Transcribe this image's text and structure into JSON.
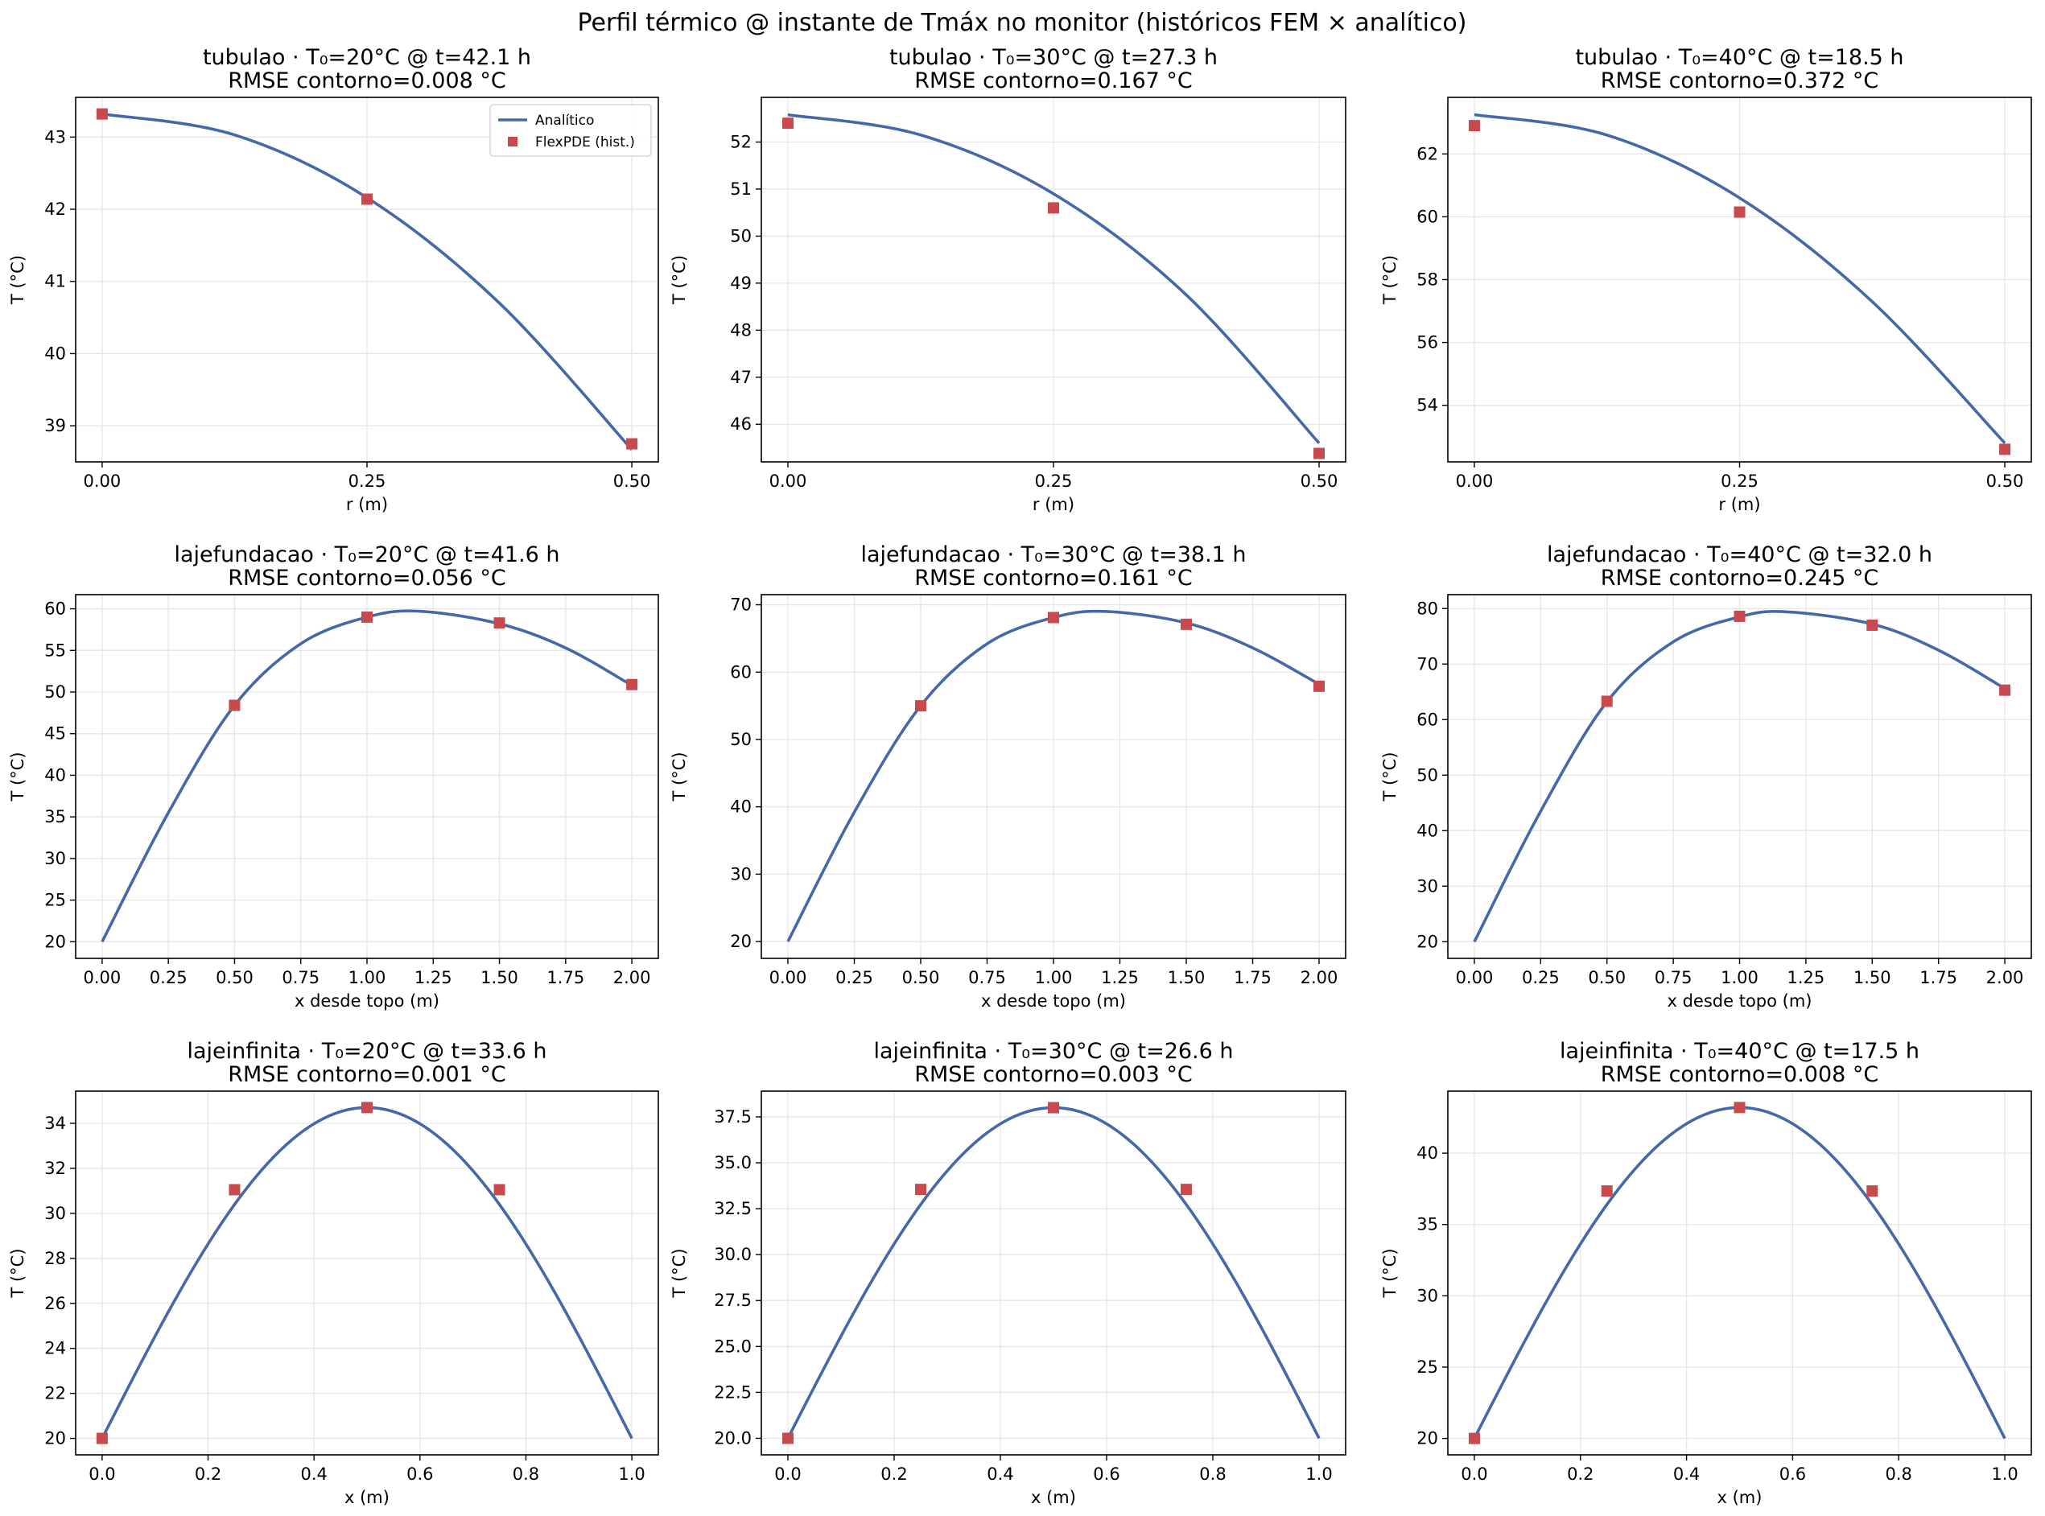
{
  "figure": {
    "suptitle": "Perfil térmico @ instante de Tmáx no monitor (históricos FEM × analítico)",
    "colors": {
      "analytic": "#4569a8",
      "fem": "#c84a4e",
      "grid": "#e6e6e6"
    }
  },
  "chart_data": [
    {
      "type": "line",
      "title": "tubulao · T₀=20°C @ t=42.1 h",
      "subtitle": "RMSE contorno=0.008 °C",
      "xlabel": "r (m)",
      "ylabel": "T (°C)",
      "xlim": [
        -0.025,
        0.525
      ],
      "ylim": [
        38.5,
        43.55
      ],
      "xticks": [
        0,
        0.25,
        0.5
      ],
      "xtick_labels": [
        "0.00",
        "0.25",
        "0.50"
      ],
      "yticks": [
        39,
        40,
        41,
        42,
        43
      ],
      "ytick_labels": [
        "39",
        "40",
        "41",
        "42",
        "43"
      ],
      "legend": {
        "position": "top-right",
        "entries": [
          "Analítico",
          "FlexPDE (hist.)"
        ]
      },
      "series": [
        {
          "name": "Analítico",
          "kind": "line",
          "x": [
            0,
            0.125,
            0.25,
            0.375,
            0.5
          ],
          "y": [
            43.32,
            43.03,
            42.16,
            40.7,
            38.67
          ]
        },
        {
          "name": "FlexPDE (hist.)",
          "kind": "scatter",
          "x": [
            0,
            0.25,
            0.5
          ],
          "y": [
            43.32,
            42.14,
            38.75
          ]
        }
      ]
    },
    {
      "type": "line",
      "title": "tubulao · T₀=30°C @ t=27.3 h",
      "subtitle": "RMSE contorno=0.167 °C",
      "xlabel": "r (m)",
      "ylabel": "T (°C)",
      "xlim": [
        -0.025,
        0.525
      ],
      "ylim": [
        45.2,
        52.95
      ],
      "xticks": [
        0,
        0.25,
        0.5
      ],
      "xtick_labels": [
        "0.00",
        "0.25",
        "0.50"
      ],
      "yticks": [
        46,
        47,
        48,
        49,
        50,
        51,
        52
      ],
      "ytick_labels": [
        "46",
        "47",
        "48",
        "49",
        "50",
        "51",
        "52"
      ],
      "series": [
        {
          "kind": "line",
          "x": [
            0,
            0.125,
            0.25,
            0.375,
            0.5
          ],
          "y": [
            52.58,
            52.15,
            50.9,
            48.75,
            45.6
          ]
        },
        {
          "kind": "scatter",
          "x": [
            0,
            0.25,
            0.5
          ],
          "y": [
            52.4,
            50.6,
            45.38
          ]
        }
      ]
    },
    {
      "type": "line",
      "title": "tubulao · T₀=40°C @ t=18.5 h",
      "subtitle": "RMSE contorno=0.372 °C",
      "xlabel": "r (m)",
      "ylabel": "T (°C)",
      "xlim": [
        -0.025,
        0.525
      ],
      "ylim": [
        52.2,
        63.8
      ],
      "xticks": [
        0,
        0.25,
        0.5
      ],
      "xtick_labels": [
        "0.00",
        "0.25",
        "0.50"
      ],
      "yticks": [
        54,
        56,
        58,
        60,
        62
      ],
      "ytick_labels": [
        "54",
        "56",
        "58",
        "60",
        "62"
      ],
      "series": [
        {
          "kind": "line",
          "x": [
            0,
            0.125,
            0.25,
            0.375,
            0.5
          ],
          "y": [
            63.25,
            62.6,
            60.6,
            57.3,
            52.8
          ]
        },
        {
          "kind": "scatter",
          "x": [
            0,
            0.25,
            0.5
          ],
          "y": [
            62.9,
            60.15,
            52.6
          ]
        }
      ]
    },
    {
      "type": "line",
      "title": "lajefundacao · T₀=20°C @ t=41.6 h",
      "subtitle": "RMSE contorno=0.056 °C",
      "xlabel": "x desde topo (m)",
      "ylabel": "T (°C)",
      "xlim": [
        -0.1,
        2.1
      ],
      "ylim": [
        18.0,
        61.7
      ],
      "xticks": [
        0,
        0.25,
        0.5,
        0.75,
        1,
        1.25,
        1.5,
        1.75,
        2
      ],
      "xtick_labels": [
        "0.00",
        "0.25",
        "0.50",
        "0.75",
        "1.00",
        "1.25",
        "1.50",
        "1.75",
        "2.00"
      ],
      "yticks": [
        20,
        25,
        30,
        35,
        40,
        45,
        50,
        55,
        60
      ],
      "ytick_labels": [
        "20",
        "25",
        "30",
        "35",
        "40",
        "45",
        "50",
        "55",
        "60"
      ],
      "series": [
        {
          "kind": "line",
          "x": [
            0,
            0.25,
            0.5,
            0.75,
            1,
            1.2,
            1.5,
            1.75,
            2
          ],
          "y": [
            20,
            35.5,
            48.4,
            55.8,
            59.0,
            59.7,
            58.2,
            55.3,
            50.8
          ]
        },
        {
          "kind": "scatter",
          "x": [
            0.5,
            1,
            1.5,
            2
          ],
          "y": [
            48.4,
            59.0,
            58.3,
            50.9
          ]
        }
      ]
    },
    {
      "type": "line",
      "title": "lajefundacao · T₀=30°C @ t=38.1 h",
      "subtitle": "RMSE contorno=0.161 °C",
      "xlabel": "x desde topo (m)",
      "ylabel": "T (°C)",
      "xlim": [
        -0.1,
        2.1
      ],
      "ylim": [
        17.5,
        71.5
      ],
      "xticks": [
        0,
        0.25,
        0.5,
        0.75,
        1,
        1.25,
        1.5,
        1.75,
        2
      ],
      "xtick_labels": [
        "0.00",
        "0.25",
        "0.50",
        "0.75",
        "1.00",
        "1.25",
        "1.50",
        "1.75",
        "2.00"
      ],
      "yticks": [
        20,
        30,
        40,
        50,
        60,
        70
      ],
      "ytick_labels": [
        "20",
        "30",
        "40",
        "50",
        "60",
        "70"
      ],
      "series": [
        {
          "kind": "line",
          "x": [
            0,
            0.25,
            0.5,
            0.75,
            1,
            1.2,
            1.5,
            1.75,
            2
          ],
          "y": [
            20,
            39.2,
            55.0,
            64.2,
            68.1,
            69.0,
            67.3,
            63.6,
            58.2
          ]
        },
        {
          "kind": "scatter",
          "x": [
            0.5,
            1,
            1.5,
            2
          ],
          "y": [
            55.0,
            68.1,
            67.1,
            57.9
          ]
        }
      ]
    },
    {
      "type": "line",
      "title": "lajefundacao · T₀=40°C @ t=32.0 h",
      "subtitle": "RMSE contorno=0.245 °C",
      "xlabel": "x desde topo (m)",
      "ylabel": "T (°C)",
      "xlim": [
        -0.1,
        2.1
      ],
      "ylim": [
        17.0,
        82.5
      ],
      "xticks": [
        0,
        0.25,
        0.5,
        0.75,
        1,
        1.25,
        1.5,
        1.75,
        2
      ],
      "xtick_labels": [
        "0.00",
        "0.25",
        "0.50",
        "0.75",
        "1.00",
        "1.25",
        "1.50",
        "1.75",
        "2.00"
      ],
      "yticks": [
        20,
        30,
        40,
        50,
        60,
        70,
        80
      ],
      "ytick_labels": [
        "20",
        "30",
        "40",
        "50",
        "60",
        "70",
        "80"
      ],
      "series": [
        {
          "kind": "line",
          "x": [
            0,
            0.25,
            0.5,
            0.75,
            1,
            1.18,
            1.5,
            1.75,
            2
          ],
          "y": [
            20,
            43.5,
            63.2,
            74.0,
            78.5,
            79.4,
            77.2,
            72.5,
            65.6
          ]
        },
        {
          "kind": "scatter",
          "x": [
            0.5,
            1,
            1.5,
            2
          ],
          "y": [
            63.3,
            78.6,
            77.0,
            65.3
          ]
        }
      ]
    },
    {
      "type": "line",
      "title": "lajeinfinita · T₀=20°C @ t=33.6 h",
      "subtitle": "RMSE contorno=0.001 °C",
      "xlabel": "x (m)",
      "ylabel": "T (°C)",
      "xlim": [
        -0.05,
        1.05
      ],
      "ylim": [
        19.27,
        35.43
      ],
      "xticks": [
        0,
        0.2,
        0.4,
        0.6,
        0.8,
        1
      ],
      "xtick_labels": [
        "0.0",
        "0.2",
        "0.4",
        "0.6",
        "0.8",
        "1.0"
      ],
      "yticks": [
        20,
        22,
        24,
        26,
        28,
        30,
        32,
        34
      ],
      "ytick_labels": [
        "20",
        "22",
        "24",
        "26",
        "28",
        "30",
        "32",
        "34"
      ],
      "series": [
        {
          "kind": "line",
          "x": [
            0,
            0.25,
            0.5,
            0.75,
            1
          ],
          "y": [
            20,
            31.05,
            34.7,
            31.05,
            20
          ],
          "sinusoidal": true
        },
        {
          "kind": "scatter",
          "x": [
            0,
            0.25,
            0.5,
            0.75
          ],
          "y": [
            20,
            31.05,
            34.7,
            31.05
          ]
        }
      ]
    },
    {
      "type": "line",
      "title": "lajeinfinita · T₀=30°C @ t=26.6 h",
      "subtitle": "RMSE contorno=0.003 °C",
      "xlabel": "x (m)",
      "ylabel": "T (°C)",
      "xlim": [
        -0.05,
        1.05
      ],
      "ylim": [
        19.1,
        38.9
      ],
      "xticks": [
        0,
        0.2,
        0.4,
        0.6,
        0.8,
        1
      ],
      "xtick_labels": [
        "0.0",
        "0.2",
        "0.4",
        "0.6",
        "0.8",
        "1.0"
      ],
      "yticks": [
        20,
        22.5,
        25,
        27.5,
        30,
        32.5,
        35,
        37.5
      ],
      "ytick_labels": [
        "20.0",
        "22.5",
        "25.0",
        "27.5",
        "30.0",
        "32.5",
        "35.0",
        "37.5"
      ],
      "series": [
        {
          "kind": "line",
          "x": [
            0,
            0.25,
            0.5,
            0.75,
            1
          ],
          "y": [
            20,
            33.55,
            38.0,
            33.55,
            20
          ],
          "sinusoidal": true
        },
        {
          "kind": "scatter",
          "x": [
            0,
            0.25,
            0.5,
            0.75
          ],
          "y": [
            20,
            33.55,
            38.0,
            33.55
          ]
        }
      ]
    },
    {
      "type": "line",
      "title": "lajeinfinita · T₀=40°C @ t=17.5 h",
      "subtitle": "RMSE contorno=0.008 °C",
      "xlabel": "x (m)",
      "ylabel": "T (°C)",
      "xlim": [
        -0.05,
        1.05
      ],
      "ylim": [
        18.85,
        44.35
      ],
      "xticks": [
        0,
        0.2,
        0.4,
        0.6,
        0.8,
        1
      ],
      "xtick_labels": [
        "0.0",
        "0.2",
        "0.4",
        "0.6",
        "0.8",
        "1.0"
      ],
      "yticks": [
        20,
        25,
        30,
        35,
        40
      ],
      "ytick_labels": [
        "20",
        "25",
        "30",
        "35",
        "40"
      ],
      "series": [
        {
          "kind": "line",
          "x": [
            0,
            0.25,
            0.5,
            0.75,
            1
          ],
          "y": [
            20,
            37.35,
            43.2,
            37.35,
            20
          ],
          "sinusoidal": true
        },
        {
          "kind": "scatter",
          "x": [
            0,
            0.25,
            0.5,
            0.75
          ],
          "y": [
            20,
            37.35,
            43.2,
            37.35
          ]
        }
      ]
    }
  ]
}
